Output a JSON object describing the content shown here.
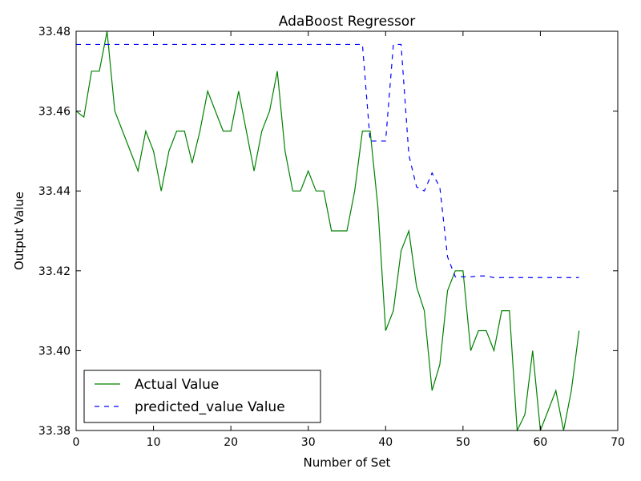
{
  "chart_data": {
    "type": "line",
    "title": "AdaBoost Regressor",
    "xlabel": "Number of Set",
    "ylabel": "Output Value",
    "xlim": [
      0,
      70
    ],
    "ylim": [
      33.38,
      33.48
    ],
    "x_ticks": [
      0,
      10,
      20,
      30,
      40,
      50,
      60,
      70
    ],
    "x_tick_labels": [
      "0",
      "10",
      "20",
      "30",
      "40",
      "50",
      "60",
      "70"
    ],
    "y_ticks": [
      33.38,
      33.4,
      33.42,
      33.44,
      33.46,
      33.48
    ],
    "y_tick_labels": [
      "33.38",
      "33.40",
      "33.42",
      "33.44",
      "33.46",
      "33.48"
    ],
    "grid": false,
    "legend_position": "lower-left",
    "series": [
      {
        "name": "Actual Value",
        "color": "#008000",
        "style": "solid",
        "x": [
          0,
          1,
          2,
          3,
          4,
          5,
          6,
          7,
          8,
          9,
          10,
          11,
          12,
          13,
          14,
          15,
          16,
          17,
          18,
          19,
          20,
          21,
          22,
          23,
          24,
          25,
          26,
          27,
          28,
          29,
          30,
          31,
          32,
          33,
          34,
          35,
          36,
          37,
          38,
          39,
          40,
          41,
          42,
          43,
          44,
          45,
          46,
          47,
          48,
          49,
          50,
          51,
          52,
          53,
          54,
          55,
          56,
          57,
          58,
          59,
          60,
          61,
          62,
          63,
          64,
          65
        ],
        "values": [
          33.46,
          33.4585,
          33.47,
          33.47,
          33.48,
          33.46,
          33.455,
          33.45,
          33.445,
          33.455,
          33.45,
          33.44,
          33.45,
          33.455,
          33.455,
          33.447,
          33.455,
          33.465,
          33.46,
          33.455,
          33.455,
          33.465,
          33.455,
          33.445,
          33.455,
          33.46,
          33.47,
          33.45,
          33.44,
          33.44,
          33.445,
          33.44,
          33.44,
          33.43,
          33.43,
          33.43,
          33.44,
          33.455,
          33.455,
          33.436,
          33.405,
          33.41,
          33.425,
          33.43,
          33.416,
          33.41,
          33.39,
          33.3965,
          33.415,
          33.42,
          33.42,
          33.4,
          33.405,
          33.405,
          33.4,
          33.41,
          33.41,
          33.38,
          33.384,
          33.4,
          33.38,
          33.385,
          33.39,
          33.38,
          33.39,
          33.405
        ]
      },
      {
        "name": "predicted_value Value",
        "color": "#0000ff",
        "style": "dashed",
        "x": [
          0,
          1,
          2,
          3,
          4,
          5,
          6,
          7,
          8,
          9,
          10,
          11,
          12,
          13,
          14,
          15,
          16,
          17,
          18,
          19,
          20,
          21,
          22,
          23,
          24,
          25,
          26,
          27,
          28,
          29,
          30,
          31,
          32,
          33,
          34,
          35,
          36,
          37,
          38,
          39,
          40,
          41,
          42,
          43,
          44,
          45,
          46,
          47,
          48,
          49,
          50,
          51,
          52,
          53,
          54,
          55,
          56,
          57,
          58,
          59,
          60,
          61,
          62,
          63,
          64,
          65
        ],
        "values": [
          33.4767,
          33.4767,
          33.4767,
          33.4767,
          33.4767,
          33.4767,
          33.4767,
          33.4767,
          33.4767,
          33.4767,
          33.4767,
          33.4767,
          33.4767,
          33.4767,
          33.4767,
          33.4767,
          33.4767,
          33.4767,
          33.4767,
          33.4767,
          33.4767,
          33.4767,
          33.4767,
          33.4767,
          33.4767,
          33.4767,
          33.4767,
          33.4767,
          33.4767,
          33.4767,
          33.4767,
          33.4767,
          33.4767,
          33.4767,
          33.4767,
          33.4767,
          33.4767,
          33.4767,
          33.4525,
          33.4525,
          33.4525,
          33.4767,
          33.4767,
          33.449,
          33.441,
          33.44,
          33.4445,
          33.441,
          33.4235,
          33.4185,
          33.4185,
          33.4185,
          33.4187,
          33.4187,
          33.4183,
          33.4183,
          33.4183,
          33.4183,
          33.4183,
          33.4183,
          33.4183,
          33.4183,
          33.4183,
          33.4183,
          33.4183,
          33.4183
        ]
      }
    ]
  }
}
